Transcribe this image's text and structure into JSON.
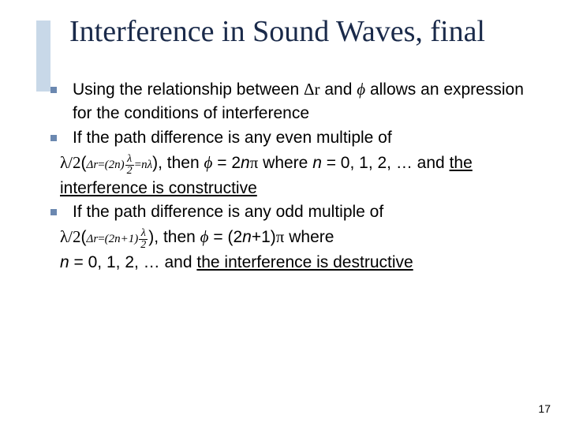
{
  "title": "Interference in Sound Waves, final",
  "bullets": {
    "b1_pre": "Using the relationship between ",
    "b1_dr": "Δr",
    "b1_mid": " and ",
    "b1_phi": "ϕ",
    "b1_post": " allows an expression for the conditions of interference",
    "b2_pre": "If the path difference is any even multiple of ",
    "b2_lambda2": "λ/2",
    "b2_paren_open": "(",
    "b2_formula_lhs": "Δr",
    "b2_formula_eq1": "=",
    "b2_formula_2n": "(2n)",
    "b2_frac1_num": "λ",
    "b2_frac1_den": "2",
    "b2_formula_eq2": "=",
    "b2_formula_nl": "nλ",
    "b2_paren_close": ")",
    "b2_then": ", then ",
    "b2_phi": "ϕ",
    "b2_eq": " = 2",
    "b2_n": "n",
    "b2_pi": "π",
    "b2_where": " where ",
    "b2_n2": "n",
    "b2_nvals": " = 0, 1, 2, …  and ",
    "b2_under": "the interference is constructive",
    "b3_pre": "If the path difference is any odd multiple of ",
    "b3_lambda2": "λ/2",
    "b3_paren_open": "(",
    "b3_formula_lhs": "Δr",
    "b3_formula_eq1": "=",
    "b3_formula_2n1": "(2n+1)",
    "b3_frac_num": "λ",
    "b3_frac_den": "2",
    "b3_paren_close": ")",
    "b3_then": ", then ",
    "b3_phi": "ϕ",
    "b3_eq_open": " = (2",
    "b3_n": "n",
    "b3_plus1": "+1)",
    "b3_pi": "π",
    "b3_where": " where ",
    "b3_n2": "n",
    "b3_nvals": " = 0, 1, 2, … and ",
    "b3_under": "the interference is destructive"
  },
  "page_number": "17",
  "colors": {
    "title": "#1a2a4a",
    "accent": "#c8d8e8",
    "bullet": "#6b88b0",
    "text": "#000000",
    "bg": "#ffffff"
  }
}
